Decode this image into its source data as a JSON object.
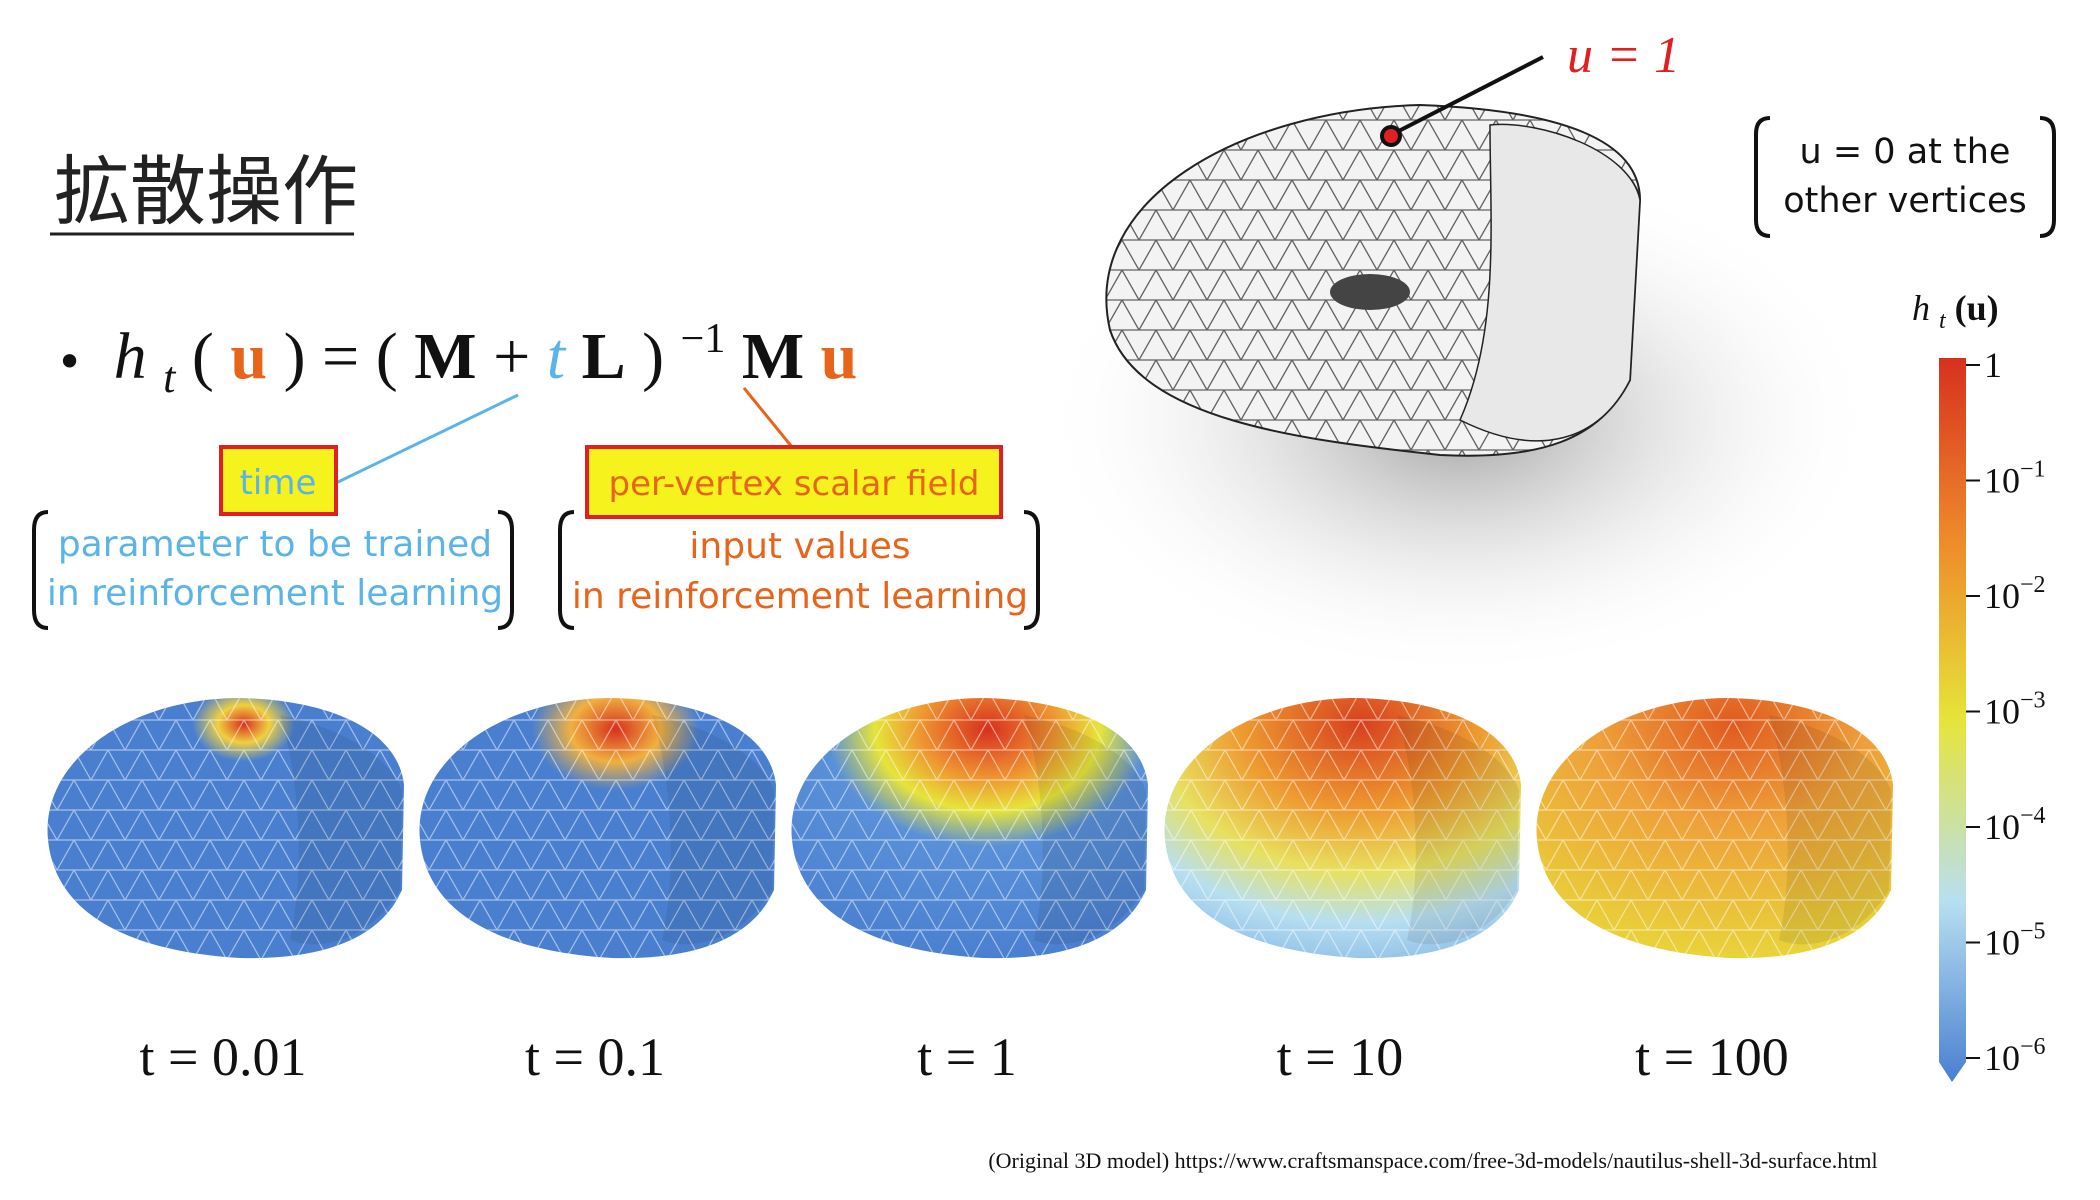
{
  "title": "拡散操作",
  "formula": {
    "bullet": "•",
    "parts": [
      "h",
      "t",
      "(",
      "u",
      ") = (",
      "M",
      " + ",
      "t",
      "L",
      ")",
      "−1",
      "M",
      "u"
    ]
  },
  "time_label": {
    "box": "time",
    "note": [
      "parameter to be trained",
      "in reinforcement learning"
    ]
  },
  "field_label": {
    "box": "per-vertex scalar field",
    "note": [
      "input values",
      "in reinforcement learning"
    ]
  },
  "point_label": "u = 1",
  "other_note": [
    "u = 0 at the",
    "other vertices"
  ],
  "colorbar": {
    "label": [
      "h",
      "t",
      "(u)"
    ],
    "ticks": [
      {
        "base": "1"
      },
      {
        "base": "10",
        "exp": "−1"
      },
      {
        "base": "10",
        "exp": "−2"
      },
      {
        "base": "10",
        "exp": "−3"
      },
      {
        "base": "10",
        "exp": "−4"
      },
      {
        "base": "10",
        "exp": "−5"
      },
      {
        "base": "10",
        "exp": "−6"
      }
    ]
  },
  "panels": [
    "t = 0.01",
    "t = 0.1",
    "t = 1",
    "t = 10",
    "t = 100"
  ],
  "source": "(Original 3D model) https://www.craftsmanspace.com/free-3d-models/nautilus-shell-3d-surface.html"
}
